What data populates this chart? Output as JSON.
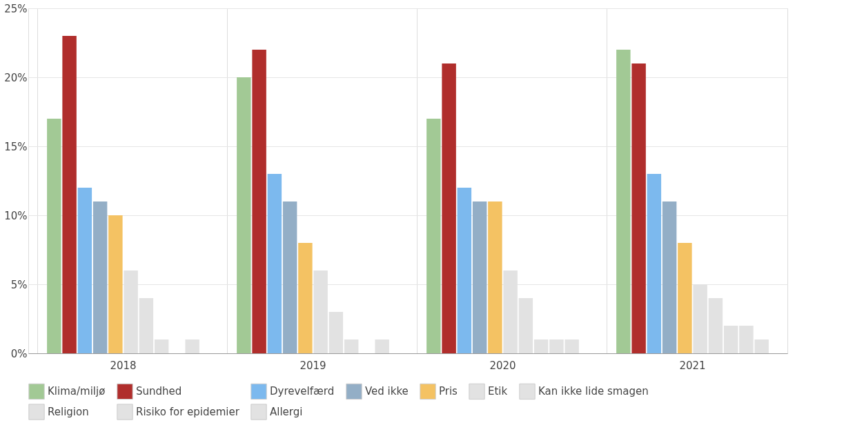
{
  "chart_data": {
    "type": "bar",
    "categories": [
      "2018",
      "2019",
      "2020",
      "2021"
    ],
    "series": [
      {
        "name": "Klima/miljø",
        "color": "#a2c995",
        "values": [
          17,
          20,
          17,
          22
        ]
      },
      {
        "name": "Sundhed",
        "color": "#b02e2c",
        "values": [
          23,
          22,
          21,
          21
        ]
      },
      {
        "name": "Dyrevelfærd",
        "color": "#7cb9ee",
        "values": [
          12,
          13,
          12,
          13
        ]
      },
      {
        "name": "Ved ikke",
        "color": "#93aec6",
        "values": [
          11,
          11,
          11,
          11
        ]
      },
      {
        "name": "Pris",
        "color": "#f4c263",
        "values": [
          10,
          8,
          11,
          8
        ]
      },
      {
        "name": "Etik",
        "color": "#e2e2e2",
        "values": [
          6,
          6,
          6,
          5
        ]
      },
      {
        "name": "Kan ikke lide smagen",
        "color": "#e2e2e2",
        "values": [
          4,
          3,
          4,
          4
        ]
      },
      {
        "name": "Religion",
        "color": "#e2e2e2",
        "values": [
          1,
          1,
          1,
          2
        ]
      },
      {
        "name": "Risiko for epidemier",
        "color": "#e2e2e2",
        "values": [
          0,
          0,
          1,
          2
        ]
      },
      {
        "name": "Allergi",
        "color": "#e2e2e2",
        "values": [
          1,
          1,
          1,
          1
        ]
      }
    ],
    "ylim": [
      0,
      25
    ],
    "yticks": [
      {
        "value": 0,
        "label": "0%"
      },
      {
        "value": 5,
        "label": "5%"
      },
      {
        "value": 10,
        "label": "10%"
      },
      {
        "value": 15,
        "label": "15%"
      },
      {
        "value": 20,
        "label": "20%"
      },
      {
        "value": 25,
        "label": "25%"
      }
    ],
    "grid": true,
    "legend": "bottom"
  }
}
